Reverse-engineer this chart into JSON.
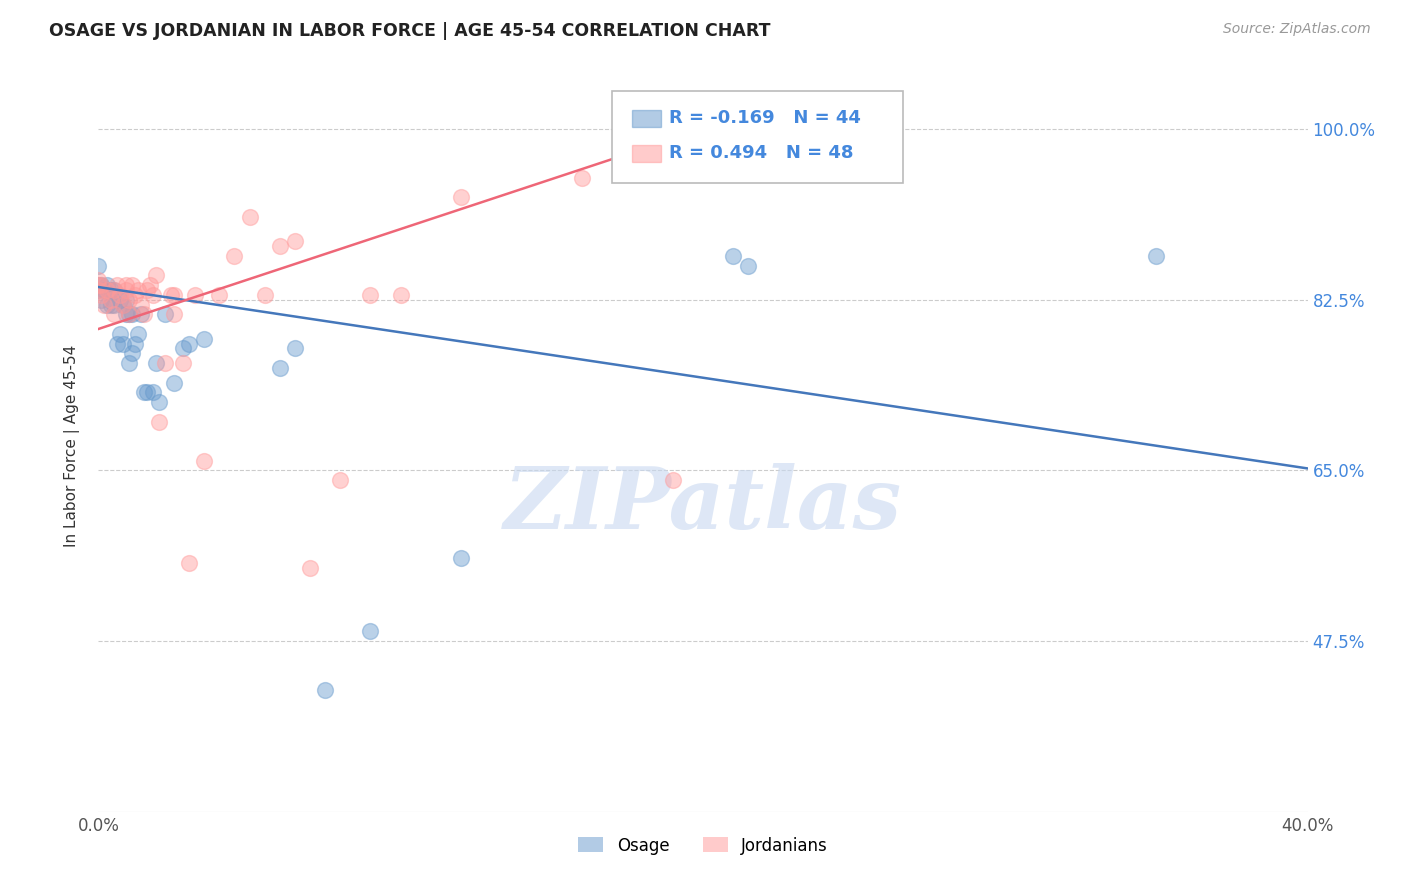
{
  "title": "OSAGE VS JORDANIAN IN LABOR FORCE | AGE 45-54 CORRELATION CHART",
  "source_text": "Source: ZipAtlas.com",
  "ylabel": "In Labor Force | Age 45-54",
  "xlim": [
    0.0,
    0.4
  ],
  "ylim": [
    0.3,
    1.05
  ],
  "xticks": [
    0.0,
    0.05,
    0.1,
    0.15,
    0.2,
    0.25,
    0.3,
    0.35,
    0.4
  ],
  "yticks": [
    0.475,
    0.65,
    0.825,
    1.0
  ],
  "legend_R_osage": "-0.169",
  "legend_N_osage": "44",
  "legend_R_jordan": "0.494",
  "legend_N_jordan": "48",
  "osage_color": "#6699CC",
  "jordan_color": "#FF9999",
  "trendline_osage_color": "#4477BB",
  "trendline_jordan_color": "#EE6677",
  "background_color": "#FFFFFF",
  "watermark_text": "ZIPatlas",
  "osage_x": [
    0.0,
    0.0,
    0.0,
    0.001,
    0.001,
    0.002,
    0.003,
    0.003,
    0.004,
    0.004,
    0.005,
    0.005,
    0.006,
    0.007,
    0.007,
    0.008,
    0.008,
    0.009,
    0.009,
    0.01,
    0.01,
    0.011,
    0.011,
    0.012,
    0.013,
    0.014,
    0.015,
    0.016,
    0.018,
    0.019,
    0.02,
    0.022,
    0.025,
    0.028,
    0.03,
    0.035,
    0.06,
    0.065,
    0.075,
    0.09,
    0.12,
    0.21,
    0.215,
    0.35
  ],
  "osage_y": [
    0.835,
    0.84,
    0.86,
    0.825,
    0.84,
    0.835,
    0.82,
    0.84,
    0.82,
    0.835,
    0.82,
    0.835,
    0.78,
    0.79,
    0.825,
    0.78,
    0.82,
    0.81,
    0.825,
    0.76,
    0.81,
    0.77,
    0.81,
    0.78,
    0.79,
    0.81,
    0.73,
    0.73,
    0.73,
    0.76,
    0.72,
    0.81,
    0.74,
    0.775,
    0.78,
    0.785,
    0.755,
    0.775,
    0.425,
    0.485,
    0.56,
    0.87,
    0.86,
    0.87
  ],
  "jordan_x": [
    0.0,
    0.0,
    0.0,
    0.001,
    0.001,
    0.002,
    0.003,
    0.004,
    0.005,
    0.005,
    0.006,
    0.007,
    0.008,
    0.009,
    0.009,
    0.01,
    0.01,
    0.011,
    0.012,
    0.013,
    0.014,
    0.015,
    0.016,
    0.017,
    0.018,
    0.019,
    0.02,
    0.022,
    0.024,
    0.025,
    0.025,
    0.028,
    0.03,
    0.032,
    0.035,
    0.04,
    0.045,
    0.05,
    0.055,
    0.06,
    0.065,
    0.07,
    0.08,
    0.09,
    0.1,
    0.12,
    0.16,
    0.19
  ],
  "jordan_y": [
    0.835,
    0.84,
    0.845,
    0.83,
    0.84,
    0.82,
    0.835,
    0.825,
    0.81,
    0.835,
    0.84,
    0.83,
    0.82,
    0.835,
    0.84,
    0.81,
    0.825,
    0.84,
    0.83,
    0.835,
    0.82,
    0.81,
    0.835,
    0.84,
    0.83,
    0.85,
    0.7,
    0.76,
    0.83,
    0.81,
    0.83,
    0.76,
    0.555,
    0.83,
    0.66,
    0.83,
    0.87,
    0.91,
    0.83,
    0.88,
    0.885,
    0.55,
    0.64,
    0.83,
    0.83,
    0.93,
    0.95,
    0.64
  ],
  "trendline_osage_x0": 0.0,
  "trendline_osage_y0": 0.838,
  "trendline_osage_x1": 0.4,
  "trendline_osage_y1": 0.652,
  "trendline_jordan_x0": 0.0,
  "trendline_jordan_y0": 0.795,
  "trendline_jordan_x1": 0.2,
  "trendline_jordan_y1": 1.0
}
